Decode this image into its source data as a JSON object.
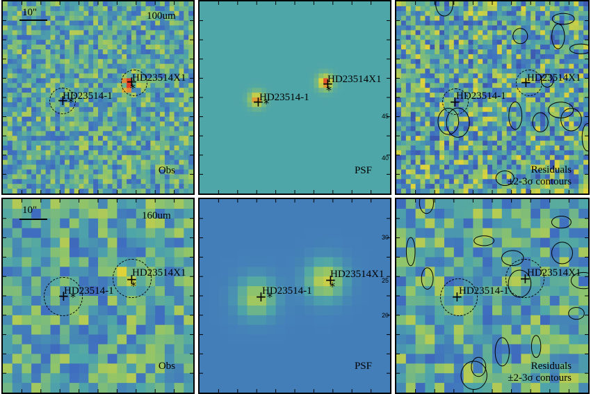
{
  "figure": {
    "panels": [
      {
        "id": "obs100",
        "band": "100um",
        "type_label": "Obs",
        "scale": "10\"",
        "style": "noise",
        "seed": 11,
        "contours": false
      },
      {
        "id": "psf100",
        "band": "",
        "type_label": "PSF",
        "scale": "",
        "style": "psf_sharp",
        "seed": 0,
        "contours": false
      },
      {
        "id": "res100",
        "band": "",
        "type_label": "Residuals",
        "type_label2": "±2-3σ contours",
        "scale": "",
        "style": "noise_dark",
        "seed": 23,
        "contours": true
      },
      {
        "id": "obs160",
        "band": "160um",
        "type_label": "Obs",
        "scale": "10\"",
        "style": "noise_coarse",
        "seed": 37,
        "contours": false
      },
      {
        "id": "psf160",
        "band": "",
        "type_label": "PSF",
        "scale": "",
        "style": "psf_broad",
        "seed": 0,
        "contours": false
      },
      {
        "id": "res160",
        "band": "",
        "type_label": "Residuals",
        "type_label2": "±2-3σ contours",
        "scale": "",
        "style": "noise_coarse",
        "seed": 53,
        "contours": true
      }
    ],
    "sources": [
      {
        "name": "HD23514-1"
      },
      {
        "name": "HD23514X1"
      }
    ],
    "colors": {
      "low": "#3b3ea8",
      "mid": "#4fa6a8",
      "high": "#e0d33a",
      "peak": "#e0402a"
    },
    "axis_ticks": [
      "20",
      "25",
      "30",
      "35",
      "40",
      "45"
    ]
  }
}
